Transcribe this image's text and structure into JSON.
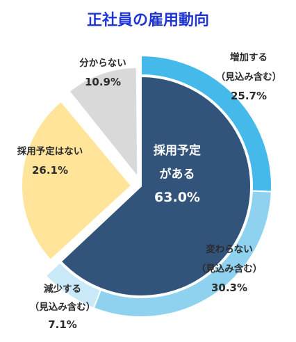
{
  "chart_data": {
    "type": "pie",
    "title": "正社員の雇用動向",
    "slices": [
      {
        "id": "adopt",
        "label_lines": [
          "採用予定",
          "がある"
        ],
        "value": 63.0,
        "value_label": "63.0%",
        "color": "#33547a"
      },
      {
        "id": "no-plan",
        "label_lines": [
          "採用予定はない"
        ],
        "value": 26.1,
        "value_label": "26.1%",
        "color": "#ffe49a"
      },
      {
        "id": "unknown",
        "label_lines": [
          "分からない"
        ],
        "value": 10.9,
        "value_label": "10.9%",
        "color": "#d9d9d9"
      }
    ],
    "breakdown_of": "adopt",
    "breakdown": [
      {
        "id": "increase",
        "label_lines": [
          "増加する",
          "（見込み含む）"
        ],
        "value": 25.7,
        "value_label": "25.7%",
        "color": "#45b9ea"
      },
      {
        "id": "same",
        "label_lines": [
          "変わらない",
          "（見込み含む）"
        ],
        "value": 30.3,
        "value_label": "30.3%",
        "color": "#8fd2f0"
      },
      {
        "id": "decrease",
        "label_lines": [
          "減少する",
          "（見込み含む）"
        ],
        "value": 7.1,
        "value_label": "7.1%",
        "color": "#c9e9f8"
      }
    ]
  }
}
